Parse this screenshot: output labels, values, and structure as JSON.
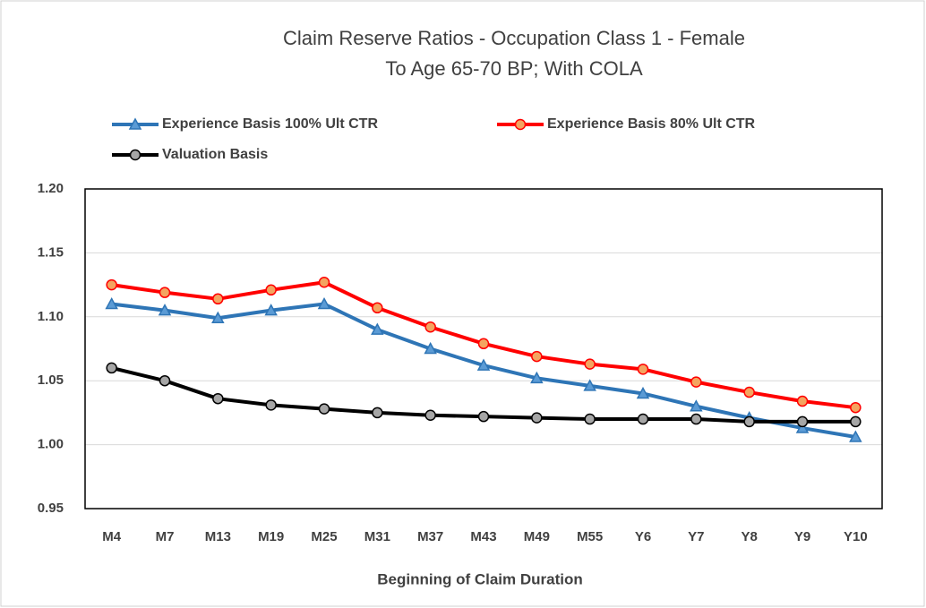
{
  "chart_data": {
    "type": "line",
    "title": "Claim Reserve Ratios - Occupation Class 1 - Female",
    "subtitle": "To Age 65-70 BP; With COLA",
    "x_label": "Beginning of Claim Duration",
    "categories": [
      "M4",
      "M7",
      "M13",
      "M19",
      "M25",
      "M31",
      "M37",
      "M43",
      "M49",
      "M55",
      "Y6",
      "Y7",
      "Y8",
      "Y9",
      "Y10"
    ],
    "series": [
      {
        "name": "Experience Basis 100% Ult CTR",
        "color": "#2e75b6",
        "marker": "triangle",
        "marker_fill": "#5b9bd5",
        "values": [
          1.11,
          1.105,
          1.099,
          1.105,
          1.11,
          1.09,
          1.075,
          1.062,
          1.052,
          1.046,
          1.04,
          1.03,
          1.021,
          1.013,
          1.006
        ]
      },
      {
        "name": "Experience Basis 80% Ult CTR",
        "color": "#ff0000",
        "marker": "circle",
        "marker_fill": "#f4a460",
        "values": [
          1.125,
          1.119,
          1.114,
          1.121,
          1.127,
          1.107,
          1.092,
          1.079,
          1.069,
          1.063,
          1.059,
          1.049,
          1.041,
          1.034,
          1.029
        ]
      },
      {
        "name": "Valuation Basis",
        "color": "#000000",
        "marker": "circle",
        "marker_fill": "#a6a6a6",
        "values": [
          1.06,
          1.05,
          1.036,
          1.031,
          1.028,
          1.025,
          1.023,
          1.022,
          1.021,
          1.02,
          1.02,
          1.02,
          1.018,
          1.018,
          1.018
        ]
      }
    ],
    "ylim": [
      0.95,
      1.2
    ],
    "yticks": [
      0.95,
      {
        "value": 1.0,
        "label": "1.00"
      },
      1.05,
      {
        "value": 1.1,
        "label": "1.10"
      },
      1.15,
      {
        "value": 1.2,
        "label": "1.20"
      }
    ],
    "grid": true
  }
}
